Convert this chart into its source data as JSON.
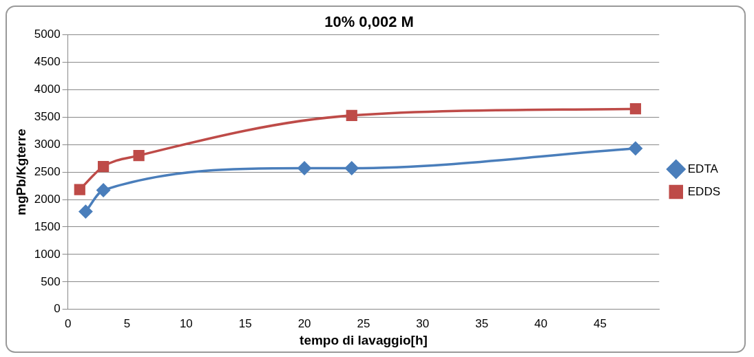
{
  "chart_data": {
    "type": "line",
    "title": "10% 0,002 M",
    "xlabel": "tempo di lavaggio[h]",
    "ylabel": "mgPb/Kgterre",
    "series": [
      {
        "name": "EDTA",
        "color": "#4a7ebb",
        "marker": "diamond",
        "x": [
          1.5,
          3,
          20,
          24,
          48
        ],
        "values": [
          1780,
          2170,
          2570,
          2570,
          2930
        ]
      },
      {
        "name": "EDDS",
        "color": "#be4b48",
        "marker": "square",
        "x": [
          1,
          3,
          6,
          24,
          48
        ],
        "values": [
          2180,
          2600,
          2800,
          3530,
          3650
        ]
      }
    ],
    "xlim": [
      0,
      50
    ],
    "xticks": [
      0,
      5,
      10,
      15,
      20,
      25,
      30,
      35,
      40,
      45
    ],
    "ylim": [
      0,
      5000
    ],
    "yticks": [
      0,
      500,
      1000,
      1500,
      2000,
      2500,
      3000,
      3500,
      4000,
      4500,
      5000
    ],
    "grid": "y",
    "legend": "right",
    "line_style": "solid"
  }
}
